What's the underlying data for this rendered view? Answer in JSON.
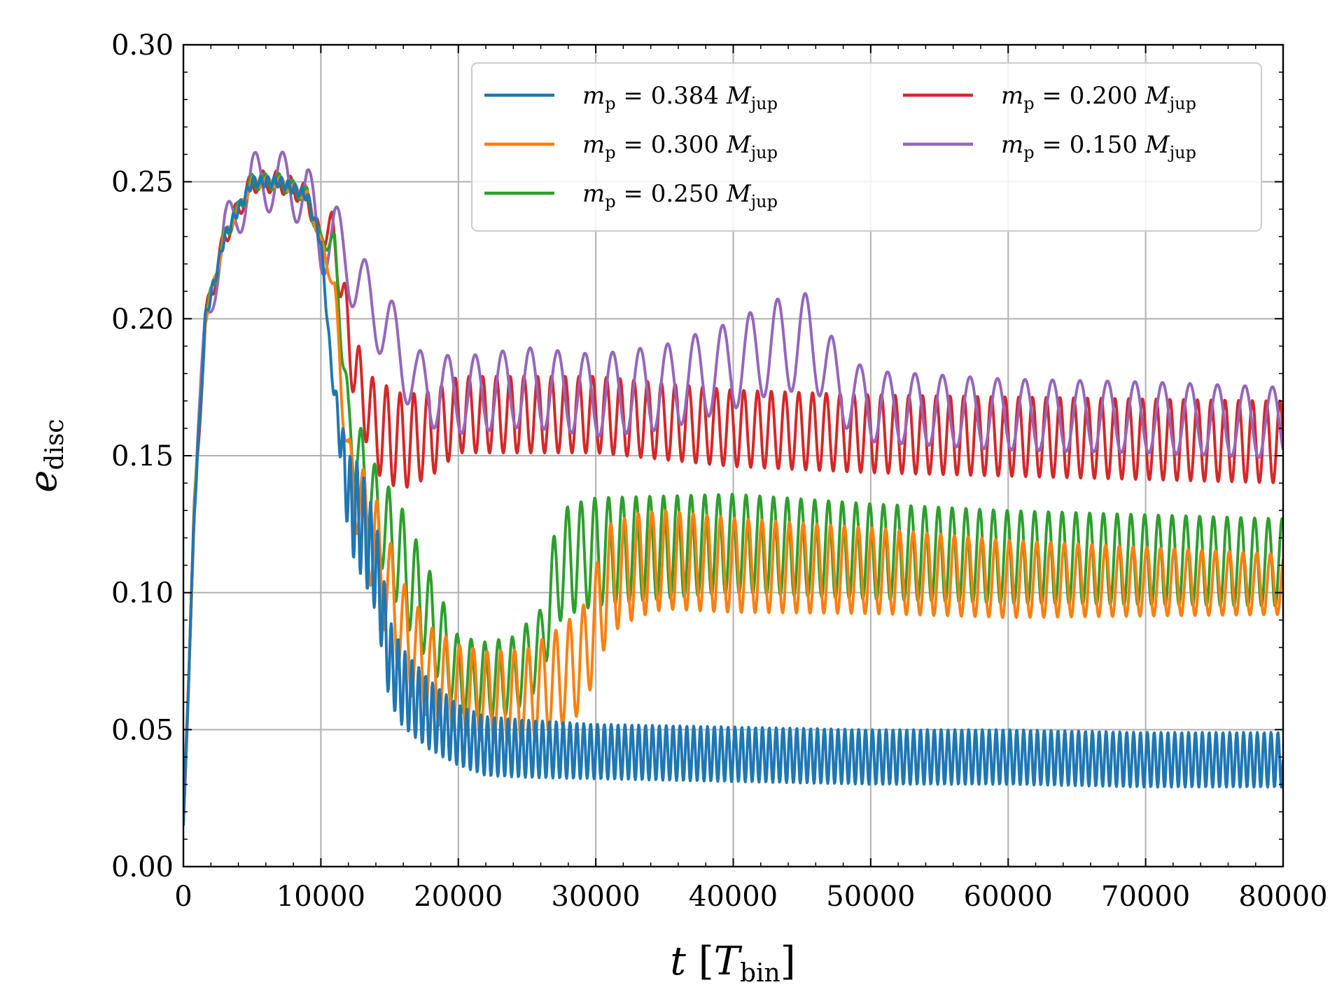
{
  "chart_data": {
    "type": "line",
    "title": "",
    "xlabel": {
      "main": "t",
      "bracket_symbol": "T",
      "bracket_sub": "bin"
    },
    "ylabel": {
      "main": "e",
      "sub": "disc"
    },
    "xlim": [
      0,
      80000
    ],
    "ylim": [
      0,
      0.3
    ],
    "xticks": [
      0,
      10000,
      20000,
      30000,
      40000,
      50000,
      60000,
      70000,
      80000
    ],
    "xtick_labels": [
      "0",
      "10000",
      "20000",
      "30000",
      "40000",
      "50000",
      "60000",
      "70000",
      "80000"
    ],
    "yticks": [
      0,
      0.05,
      0.1,
      0.15,
      0.2,
      0.25,
      0.3
    ],
    "ytick_labels": [
      "0.00",
      "0.05",
      "0.10",
      "0.15",
      "0.20",
      "0.25",
      "0.30"
    ],
    "grid": true,
    "legend_position": "top-right",
    "series": [
      {
        "name": "m_p = 0.384 M_jup",
        "legend": {
          "sym": "m",
          "sub": "p",
          "value": " = 0.384 ",
          "unit": "M",
          "unit_sub": "jup"
        },
        "color": "#1f77b4",
        "anchors": [
          [
            0,
            0.015
          ],
          [
            800,
            0.13
          ],
          [
            1600,
            0.2
          ],
          [
            3000,
            0.23
          ],
          [
            5000,
            0.25
          ],
          [
            7000,
            0.25
          ],
          [
            9000,
            0.245
          ],
          [
            10000,
            0.228
          ],
          [
            10800,
            0.18
          ],
          [
            12000,
            0.135
          ],
          [
            13000,
            0.125
          ],
          [
            14000,
            0.11
          ],
          [
            15000,
            0.075
          ],
          [
            16000,
            0.065
          ],
          [
            18000,
            0.055
          ],
          [
            20000,
            0.048
          ],
          [
            22000,
            0.044
          ],
          [
            25000,
            0.043
          ],
          [
            30000,
            0.042
          ],
          [
            40000,
            0.041
          ],
          [
            50000,
            0.04
          ],
          [
            60000,
            0.04
          ],
          [
            70000,
            0.039
          ],
          [
            80000,
            0.039
          ]
        ],
        "osc": [
          [
            10800,
            0.002
          ],
          [
            12500,
            0.02
          ],
          [
            15000,
            0.015
          ],
          [
            20000,
            0.011
          ],
          [
            30000,
            0.01
          ],
          [
            80000,
            0.01
          ]
        ],
        "period": 500
      },
      {
        "name": "m_p = 0.300 M_jup",
        "legend": {
          "sym": "m",
          "sub": "p",
          "value": " = 0.300 ",
          "unit": "M",
          "unit_sub": "jup"
        },
        "color": "#ff7f0e",
        "anchors": [
          [
            0,
            0.015
          ],
          [
            800,
            0.13
          ],
          [
            1600,
            0.2
          ],
          [
            3000,
            0.23
          ],
          [
            5000,
            0.25
          ],
          [
            7000,
            0.25
          ],
          [
            9000,
            0.245
          ],
          [
            10000,
            0.228
          ],
          [
            11000,
            0.21
          ],
          [
            12000,
            0.145
          ],
          [
            13000,
            0.13
          ],
          [
            14000,
            0.115
          ],
          [
            16000,
            0.085
          ],
          [
            18000,
            0.07
          ],
          [
            20000,
            0.065
          ],
          [
            22000,
            0.062
          ],
          [
            25000,
            0.062
          ],
          [
            27000,
            0.068
          ],
          [
            29000,
            0.075
          ],
          [
            30000,
            0.09
          ],
          [
            31000,
            0.105
          ],
          [
            33000,
            0.11
          ],
          [
            35000,
            0.112
          ],
          [
            40000,
            0.11
          ],
          [
            50000,
            0.108
          ],
          [
            60000,
            0.105
          ],
          [
            70000,
            0.104
          ],
          [
            80000,
            0.103
          ]
        ],
        "osc": [
          [
            10800,
            0.002
          ],
          [
            12000,
            0.012
          ],
          [
            14000,
            0.02
          ],
          [
            20000,
            0.016
          ],
          [
            27000,
            0.018
          ],
          [
            31000,
            0.02
          ],
          [
            35000,
            0.018
          ],
          [
            80000,
            0.011
          ]
        ],
        "period": 1000
      },
      {
        "name": "m_p = 0.250 M_jup",
        "legend": {
          "sym": "m",
          "sub": "p",
          "value": " = 0.250 ",
          "unit": "M",
          "unit_sub": "jup"
        },
        "color": "#2ca02c",
        "anchors": [
          [
            0,
            0.015
          ],
          [
            800,
            0.13
          ],
          [
            1600,
            0.2
          ],
          [
            3000,
            0.23
          ],
          [
            5000,
            0.25
          ],
          [
            7000,
            0.25
          ],
          [
            9000,
            0.245
          ],
          [
            10000,
            0.228
          ],
          [
            11000,
            0.228
          ],
          [
            12000,
            0.16
          ],
          [
            14000,
            0.13
          ],
          [
            16000,
            0.11
          ],
          [
            18000,
            0.09
          ],
          [
            20000,
            0.07
          ],
          [
            22000,
            0.068
          ],
          [
            24000,
            0.07
          ],
          [
            26000,
            0.08
          ],
          [
            27000,
            0.105
          ],
          [
            28000,
            0.112
          ],
          [
            30000,
            0.115
          ],
          [
            40000,
            0.118
          ],
          [
            50000,
            0.115
          ],
          [
            60000,
            0.113
          ],
          [
            70000,
            0.112
          ],
          [
            80000,
            0.111
          ]
        ],
        "osc": [
          [
            11000,
            0.003
          ],
          [
            12000,
            0.012
          ],
          [
            16000,
            0.02
          ],
          [
            20000,
            0.014
          ],
          [
            26000,
            0.014
          ],
          [
            28000,
            0.02
          ],
          [
            40000,
            0.018
          ],
          [
            80000,
            0.016
          ]
        ],
        "period": 1000
      },
      {
        "name": "m_p = 0.200 M_jup",
        "legend": {
          "sym": "m",
          "sub": "p",
          "value": " = 0.200 ",
          "unit": "M",
          "unit_sub": "jup"
        },
        "color": "#d62728",
        "anchors": [
          [
            0,
            0.015
          ],
          [
            800,
            0.13
          ],
          [
            1600,
            0.2
          ],
          [
            3000,
            0.23
          ],
          [
            5000,
            0.25
          ],
          [
            7000,
            0.25
          ],
          [
            9000,
            0.245
          ],
          [
            10000,
            0.228
          ],
          [
            10800,
            0.235
          ],
          [
            11500,
            0.21
          ],
          [
            12500,
            0.18
          ],
          [
            14000,
            0.16
          ],
          [
            16000,
            0.155
          ],
          [
            18000,
            0.158
          ],
          [
            20000,
            0.165
          ],
          [
            25000,
            0.165
          ],
          [
            30000,
            0.165
          ],
          [
            40000,
            0.16
          ],
          [
            50000,
            0.158
          ],
          [
            60000,
            0.157
          ],
          [
            70000,
            0.156
          ],
          [
            80000,
            0.155
          ]
        ],
        "osc": [
          [
            10800,
            0.004
          ],
          [
            12000,
            0.012
          ],
          [
            15000,
            0.018
          ],
          [
            20000,
            0.014
          ],
          [
            40000,
            0.014
          ],
          [
            80000,
            0.015
          ]
        ],
        "period": 1000
      },
      {
        "name": "m_p = 0.150 M_jup",
        "legend": {
          "sym": "m",
          "sub": "p",
          "value": " = 0.150 ",
          "unit": "M",
          "unit_sub": "jup"
        },
        "color": "#9467bd",
        "anchors": [
          [
            0,
            0.015
          ],
          [
            800,
            0.13
          ],
          [
            1600,
            0.2
          ],
          [
            3000,
            0.23
          ],
          [
            5000,
            0.25
          ],
          [
            7000,
            0.25
          ],
          [
            9000,
            0.245
          ],
          [
            10000,
            0.228
          ],
          [
            11000,
            0.23
          ],
          [
            13000,
            0.21
          ],
          [
            15000,
            0.195
          ],
          [
            17000,
            0.175
          ],
          [
            20000,
            0.172
          ],
          [
            25000,
            0.175
          ],
          [
            30000,
            0.172
          ],
          [
            35000,
            0.175
          ],
          [
            40000,
            0.183
          ],
          [
            43000,
            0.19
          ],
          [
            46000,
            0.192
          ],
          [
            47500,
            0.175
          ],
          [
            50000,
            0.168
          ],
          [
            60000,
            0.165
          ],
          [
            70000,
            0.164
          ],
          [
            80000,
            0.162
          ]
        ],
        "osc": [
          [
            0,
            0.0
          ],
          [
            1000,
            0.006
          ],
          [
            3000,
            0.01
          ],
          [
            9000,
            0.012
          ],
          [
            12000,
            0.013
          ],
          [
            20000,
            0.014
          ],
          [
            40000,
            0.016
          ],
          [
            46000,
            0.018
          ],
          [
            48000,
            0.013
          ],
          [
            80000,
            0.013
          ]
        ],
        "period": 2000
      }
    ]
  }
}
